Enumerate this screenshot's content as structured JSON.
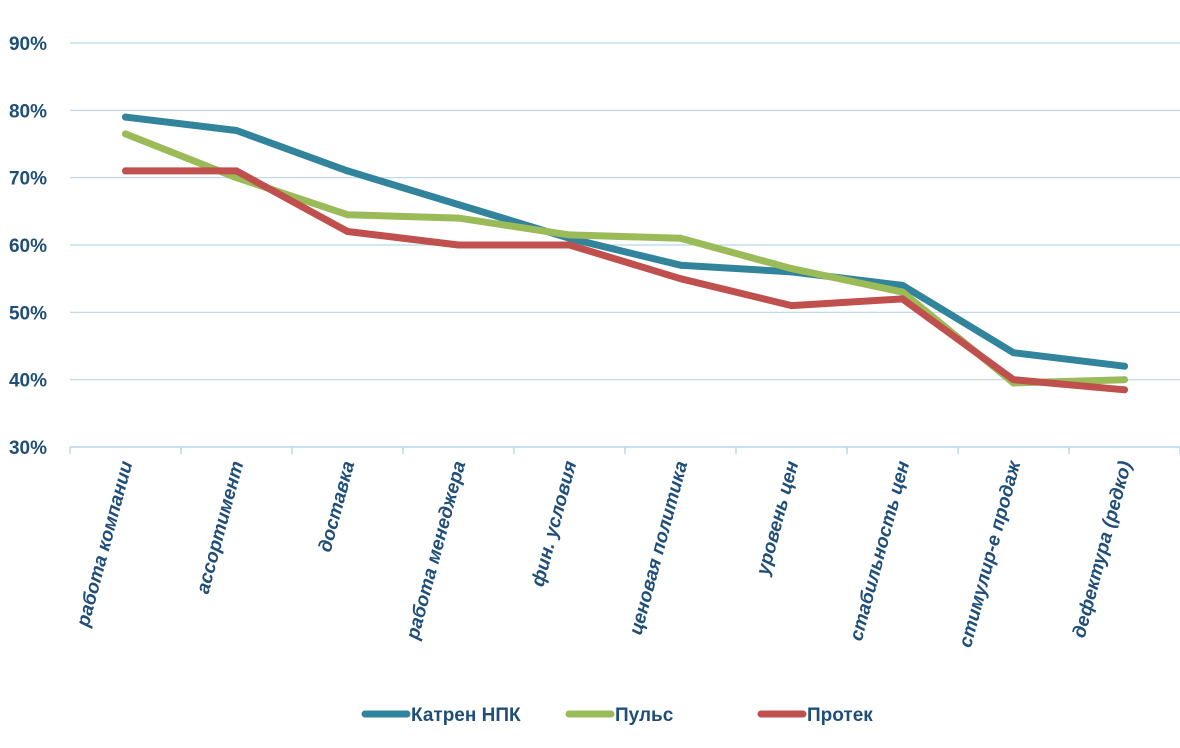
{
  "chart_data": {
    "type": "line",
    "categories": [
      "работа компании",
      "ассортимент",
      "доставка",
      "работа менеджера",
      "фин. условия",
      "ценовая политика",
      "уровень цен",
      "стабильность цен",
      "стимулир-е продаж",
      "дефектура (редко)"
    ],
    "ylim": [
      30,
      90
    ],
    "yticks": [
      "30%",
      "40%",
      "50%",
      "60%",
      "70%",
      "80%",
      "90%"
    ],
    "ytick_values": [
      30,
      40,
      50,
      60,
      70,
      80,
      90
    ],
    "grid": true,
    "legend_position": "bottom",
    "series": [
      {
        "name": "Катрен НПК",
        "color": "#31849b",
        "values": [
          79,
          77,
          71,
          66,
          61,
          57,
          56,
          54,
          44,
          42
        ]
      },
      {
        "name": "Пульс",
        "color": "#9bbb59",
        "values": [
          76.5,
          70,
          64.5,
          64,
          61.5,
          61,
          56.5,
          53,
          39.5,
          40
        ]
      },
      {
        "name": "Протек",
        "color": "#c0504d",
        "values": [
          71,
          71,
          62,
          60,
          60,
          55,
          51,
          52,
          40,
          38.5
        ]
      }
    ]
  }
}
